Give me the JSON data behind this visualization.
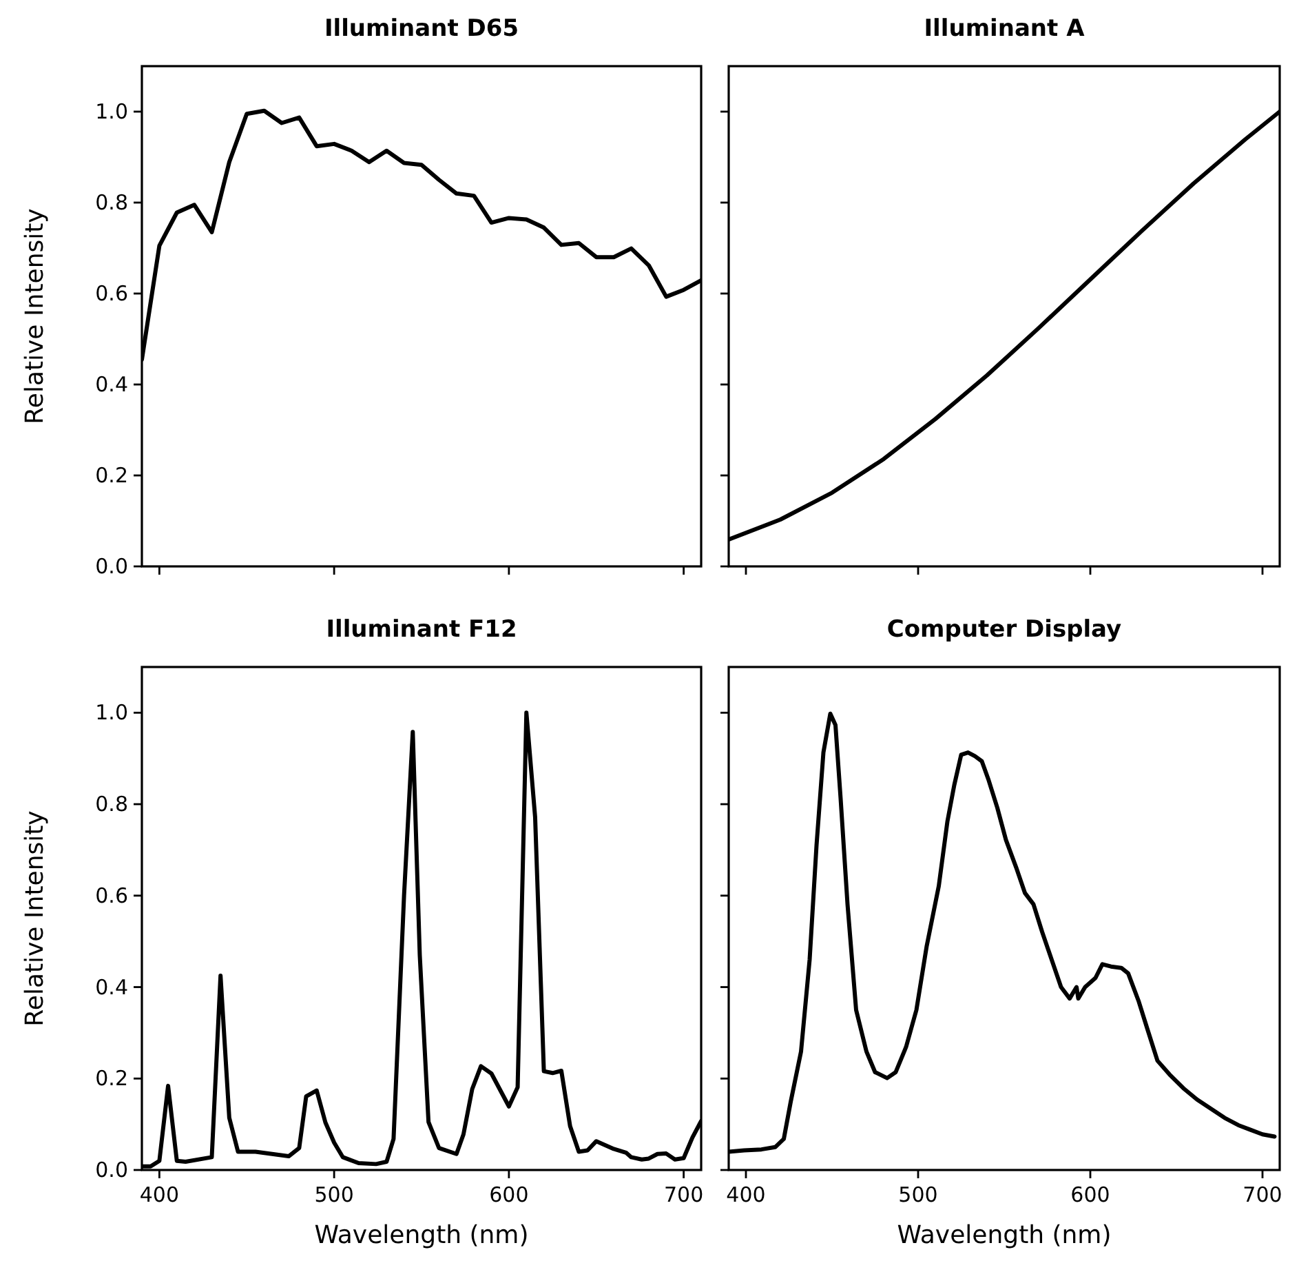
{
  "chart_data": [
    {
      "type": "line",
      "title": "Illuminant D65",
      "ylabel": "Relative Intensity",
      "xlim": [
        390,
        710
      ],
      "ylim": [
        0,
        1.1
      ],
      "xticks": [
        {
          "value": 400,
          "label": null
        },
        {
          "value": 500,
          "label": null
        },
        {
          "value": 600,
          "label": null
        },
        {
          "value": 700,
          "label": null
        }
      ],
      "yticks": [
        {
          "value": 0,
          "label": "0.0"
        },
        {
          "value": 0.2,
          "label": "0.2"
        },
        {
          "value": 0.4,
          "label": "0.4"
        },
        {
          "value": 0.6,
          "label": "0.6"
        },
        {
          "value": 0.8,
          "label": "0.8"
        },
        {
          "value": 1,
          "label": "1.0"
        }
      ],
      "tick_labels": "y",
      "grid": false,
      "series": [
        {
          "color": "#000000",
          "x": [
            390,
            400,
            410,
            420,
            430,
            440,
            450,
            460,
            470,
            480,
            490,
            500,
            510,
            520,
            530,
            540,
            550,
            560,
            570,
            580,
            590,
            600,
            610,
            620,
            630,
            640,
            650,
            660,
            670,
            680,
            690,
            700,
            710
          ],
          "values": [
            0.455,
            0.705,
            0.778,
            0.795,
            0.735,
            0.889,
            0.995,
            1.002,
            0.975,
            0.987,
            0.924,
            0.929,
            0.914,
            0.889,
            0.914,
            0.887,
            0.883,
            0.85,
            0.82,
            0.815,
            0.756,
            0.766,
            0.763,
            0.745,
            0.707,
            0.711,
            0.68,
            0.68,
            0.699,
            0.662,
            0.593,
            0.608,
            0.629
          ]
        }
      ]
    },
    {
      "type": "line",
      "title": "Illuminant A",
      "xlim": [
        390,
        710
      ],
      "ylim": [
        0,
        1.1
      ],
      "xticks": [
        {
          "value": 400,
          "label": null
        },
        {
          "value": 500,
          "label": null
        },
        {
          "value": 600,
          "label": null
        },
        {
          "value": 700,
          "label": null
        }
      ],
      "yticks": [
        {
          "value": 0,
          "label": null
        },
        {
          "value": 0.2,
          "label": null
        },
        {
          "value": 0.4,
          "label": null
        },
        {
          "value": 0.6,
          "label": null
        },
        {
          "value": 0.8,
          "label": null
        },
        {
          "value": 1,
          "label": null
        }
      ],
      "tick_labels": false,
      "grid": false,
      "series": [
        {
          "color": "#000000",
          "x": [
            390,
            420,
            450,
            480,
            510,
            540,
            570,
            600,
            630,
            660,
            690,
            710
          ],
          "values": [
            0.059,
            0.103,
            0.162,
            0.236,
            0.324,
            0.42,
            0.524,
            0.631,
            0.738,
            0.842,
            0.939,
            1.0
          ]
        }
      ]
    },
    {
      "type": "line",
      "title": "Illuminant F12",
      "xlabel": "Wavelength (nm)",
      "ylabel": "Relative Intensity",
      "xlim": [
        390,
        710
      ],
      "ylim": [
        0,
        1.1
      ],
      "xticks": [
        400,
        500,
        600,
        700
      ],
      "yticks": [
        {
          "value": 0,
          "label": "0.0"
        },
        {
          "value": 0.2,
          "label": "0.2"
        },
        {
          "value": 0.4,
          "label": "0.4"
        },
        {
          "value": 0.6,
          "label": "0.6"
        },
        {
          "value": 0.8,
          "label": "0.8"
        },
        {
          "value": 1,
          "label": "1.0"
        }
      ],
      "grid": false,
      "series": [
        {
          "color": "#000000",
          "x": [
            390,
            395,
            400,
            405,
            410,
            415,
            430,
            435,
            440,
            445,
            455,
            474,
            480,
            484,
            490,
            495,
            500,
            505,
            514,
            524,
            530,
            534,
            540,
            545,
            549,
            554,
            560,
            570,
            574,
            579,
            584,
            590,
            600,
            605,
            610,
            615,
            620,
            625,
            630,
            635,
            640,
            645,
            650,
            660,
            667,
            670,
            676,
            680,
            685,
            690,
            695,
            700,
            705,
            710
          ],
          "values": [
            0.008,
            0.008,
            0.02,
            0.184,
            0.02,
            0.018,
            0.028,
            0.425,
            0.114,
            0.04,
            0.04,
            0.03,
            0.048,
            0.161,
            0.174,
            0.104,
            0.06,
            0.028,
            0.015,
            0.013,
            0.018,
            0.068,
            0.6,
            0.958,
            0.47,
            0.105,
            0.048,
            0.035,
            0.078,
            0.177,
            0.227,
            0.211,
            0.139,
            0.181,
            1.0,
            0.772,
            0.216,
            0.212,
            0.217,
            0.096,
            0.04,
            0.043,
            0.063,
            0.046,
            0.038,
            0.028,
            0.023,
            0.025,
            0.035,
            0.036,
            0.023,
            0.026,
            0.071,
            0.107
          ]
        }
      ]
    },
    {
      "type": "line",
      "title": "Computer Display",
      "xlabel": "Wavelength (nm)",
      "xlim": [
        390,
        710
      ],
      "ylim": [
        0,
        1.1
      ],
      "xticks": [
        400,
        500,
        600,
        700
      ],
      "yticks": [
        {
          "value": 0,
          "label": null
        },
        {
          "value": 0.2,
          "label": null
        },
        {
          "value": 0.4,
          "label": null
        },
        {
          "value": 0.6,
          "label": null
        },
        {
          "value": 0.8,
          "label": null
        },
        {
          "value": 1,
          "label": null
        }
      ],
      "tick_labels": "x",
      "grid": false,
      "series": [
        {
          "color": "#000000",
          "x": [
            390,
            399,
            409,
            417,
            422,
            426,
            432,
            437,
            441,
            445,
            449,
            452,
            455,
            459,
            464,
            470,
            475,
            482,
            487,
            493,
            499,
            505,
            512,
            517,
            521,
            525,
            529,
            533,
            537,
            541,
            546,
            551,
            557,
            562,
            567,
            572,
            578,
            583,
            588,
            592,
            593,
            597,
            603,
            607,
            612,
            618,
            622,
            628,
            633,
            639,
            646,
            654,
            662,
            670,
            678,
            686,
            693,
            700,
            707
          ],
          "values": [
            0.04,
            0.043,
            0.045,
            0.05,
            0.068,
            0.149,
            0.259,
            0.46,
            0.71,
            0.913,
            0.998,
            0.973,
            0.812,
            0.581,
            0.35,
            0.259,
            0.214,
            0.201,
            0.214,
            0.269,
            0.35,
            0.49,
            0.621,
            0.762,
            0.842,
            0.908,
            0.913,
            0.905,
            0.894,
            0.852,
            0.792,
            0.722,
            0.661,
            0.606,
            0.581,
            0.521,
            0.455,
            0.4,
            0.375,
            0.4,
            0.375,
            0.4,
            0.42,
            0.45,
            0.445,
            0.442,
            0.43,
            0.37,
            0.31,
            0.239,
            0.209,
            0.179,
            0.154,
            0.134,
            0.114,
            0.098,
            0.088,
            0.078,
            0.073
          ]
        }
      ]
    }
  ]
}
